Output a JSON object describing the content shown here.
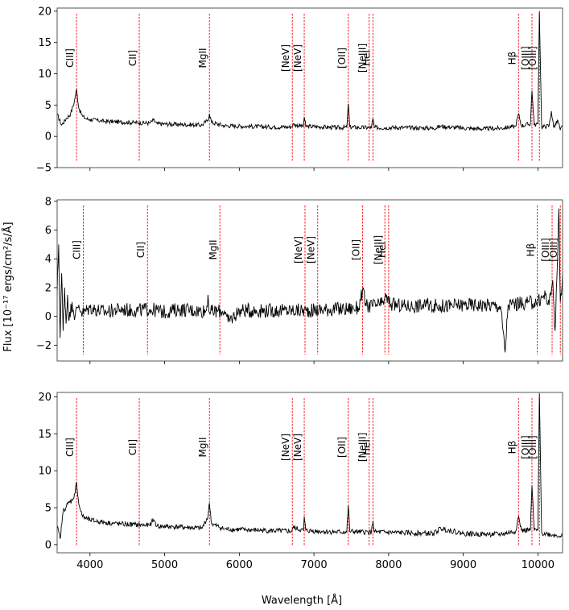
{
  "figure": {
    "xlabel": "Wavelength [Å]",
    "ylabel": "Flux [10⁻¹⁷ ergs/cm²/s/Å]"
  },
  "chart_data": [
    {
      "type": "line",
      "xlim": [
        3560,
        10330
      ],
      "ylim": [
        -5,
        20.5
      ],
      "yticks": [
        -5,
        0,
        5,
        10,
        15,
        20
      ],
      "xticks": [
        4000,
        5000,
        6000,
        7000,
        8000,
        9000,
        10000
      ],
      "show_xtick_labels": false,
      "grid": false,
      "line_color": "#ff0000",
      "spectrum_color": "#000000",
      "emission_lines": [
        {
          "label": "CIII]",
          "x": 3820
        },
        {
          "label": "CII]",
          "x": 4660
        },
        {
          "label": "MgII",
          "x": 5600
        },
        {
          "label": "[NeV]",
          "x": 6710
        },
        {
          "label": "[NeV]",
          "x": 6870
        },
        {
          "label": "[OII]",
          "x": 7460
        },
        {
          "label": "[NeIII]",
          "x": 7740
        },
        {
          "label": "HeI",
          "x": 7790
        },
        {
          "label": "Hβ",
          "x": 9740
        },
        {
          "label": "[OIII]",
          "x": 9920
        },
        {
          "label": "[OIII]",
          "x": 10020
        }
      ],
      "spectrum": [
        [
          3560,
          3.5
        ],
        [
          3620,
          1.8
        ],
        [
          3680,
          2.8
        ],
        [
          3740,
          3.6
        ],
        [
          3790,
          5.5
        ],
        [
          3820,
          7.5
        ],
        [
          3850,
          4.5
        ],
        [
          3900,
          3.2
        ],
        [
          3950,
          2.8
        ],
        [
          4000,
          2.7
        ],
        [
          4200,
          2.4
        ],
        [
          4400,
          2.3
        ],
        [
          4600,
          2.2
        ],
        [
          4800,
          2.1
        ],
        [
          4850,
          2.6
        ],
        [
          4900,
          2.0
        ],
        [
          5200,
          1.9
        ],
        [
          5500,
          1.8
        ],
        [
          5580,
          2.6
        ],
        [
          5600,
          3.6
        ],
        [
          5630,
          2.2
        ],
        [
          5800,
          1.7
        ],
        [
          6100,
          1.6
        ],
        [
          6400,
          1.5
        ],
        [
          6700,
          1.5
        ],
        [
          6720,
          1.9
        ],
        [
          6860,
          1.6
        ],
        [
          6870,
          3.1
        ],
        [
          6890,
          1.6
        ],
        [
          7100,
          1.5
        ],
        [
          7300,
          1.4
        ],
        [
          7440,
          1.4
        ],
        [
          7460,
          5.2
        ],
        [
          7480,
          1.5
        ],
        [
          7600,
          1.4
        ],
        [
          7770,
          1.4
        ],
        [
          7790,
          2.8
        ],
        [
          7810,
          1.4
        ],
        [
          8200,
          1.4
        ],
        [
          8600,
          1.3
        ],
        [
          8700,
          1.6
        ],
        [
          9000,
          1.3
        ],
        [
          9300,
          1.2
        ],
        [
          9500,
          1.3
        ],
        [
          9700,
          1.6
        ],
        [
          9740,
          3.6
        ],
        [
          9780,
          1.7
        ],
        [
          9900,
          2.0
        ],
        [
          9920,
          7.3
        ],
        [
          9950,
          1.8
        ],
        [
          10000,
          2.0
        ],
        [
          10020,
          20.0
        ],
        [
          10050,
          1.5
        ],
        [
          10150,
          1.7
        ],
        [
          10180,
          4.0
        ],
        [
          10210,
          1.5
        ],
        [
          10270,
          2.5
        ],
        [
          10300,
          1.0
        ],
        [
          10330,
          1.6
        ]
      ]
    },
    {
      "type": "line",
      "xlim": [
        3560,
        10330
      ],
      "ylim": [
        -3.1,
        8.1
      ],
      "yticks": [
        -2,
        0,
        2,
        4,
        6,
        8
      ],
      "xticks": [
        4000,
        5000,
        6000,
        7000,
        8000,
        9000,
        10000
      ],
      "show_xtick_labels": false,
      "grid": false,
      "line_color": "#ff0000",
      "spectrum_color": "#000000",
      "emission_lines": [
        {
          "label": "CIII]",
          "x": 3910
        },
        {
          "label": "CII]",
          "x": 4770
        },
        {
          "label": "MgII",
          "x": 5740
        },
        {
          "label": "[NeV]",
          "x": 6880
        },
        {
          "label": "[NeV]",
          "x": 7050
        },
        {
          "label": "[OII]",
          "x": 7650
        },
        {
          "label": "[NeIII]",
          "x": 7950
        },
        {
          "label": "HeI",
          "x": 8000
        },
        {
          "label": "Hβ",
          "x": 9990
        },
        {
          "label": "[OIII]",
          "x": 10190
        },
        {
          "label": "[OIII]",
          "x": 10300
        }
      ],
      "spectrum": [
        [
          3560,
          1.5
        ],
        [
          3580,
          5.0
        ],
        [
          3600,
          -1.5
        ],
        [
          3620,
          3.0
        ],
        [
          3640,
          -1.0
        ],
        [
          3660,
          2.0
        ],
        [
          3680,
          -0.5
        ],
        [
          3700,
          1.5
        ],
        [
          3720,
          -0.3
        ],
        [
          3760,
          1.0
        ],
        [
          3800,
          0.0
        ],
        [
          3850,
          0.8
        ],
        [
          3900,
          0.2
        ],
        [
          4000,
          0.6
        ],
        [
          4200,
          0.3
        ],
        [
          4400,
          0.5
        ],
        [
          4600,
          0.4
        ],
        [
          4800,
          0.5
        ],
        [
          5000,
          0.3
        ],
        [
          5200,
          0.5
        ],
        [
          5400,
          0.4
        ],
        [
          5560,
          0.4
        ],
        [
          5580,
          1.5
        ],
        [
          5600,
          0.3
        ],
        [
          5800,
          0.4
        ],
        [
          5850,
          -0.4
        ],
        [
          6000,
          0.4
        ],
        [
          6300,
          0.4
        ],
        [
          6600,
          0.4
        ],
        [
          6900,
          0.4
        ],
        [
          7200,
          0.5
        ],
        [
          7400,
          0.5
        ],
        [
          7600,
          0.6
        ],
        [
          7650,
          1.8
        ],
        [
          7700,
          0.7
        ],
        [
          7900,
          0.8
        ],
        [
          7950,
          1.3
        ],
        [
          8050,
          0.8
        ],
        [
          8300,
          0.7
        ],
        [
          8500,
          0.8
        ],
        [
          8700,
          0.7
        ],
        [
          9000,
          0.8
        ],
        [
          9300,
          0.8
        ],
        [
          9500,
          0.7
        ],
        [
          9560,
          -2.5
        ],
        [
          9600,
          0.8
        ],
        [
          9800,
          0.9
        ],
        [
          10000,
          1.0
        ],
        [
          10100,
          1.5
        ],
        [
          10150,
          0.8
        ],
        [
          10200,
          2.5
        ],
        [
          10230,
          -1.0
        ],
        [
          10260,
          3.5
        ],
        [
          10280,
          7.5
        ],
        [
          10300,
          1.0
        ],
        [
          10330,
          3.0
        ]
      ]
    },
    {
      "type": "line",
      "xlim": [
        3560,
        10330
      ],
      "ylim": [
        -1.1,
        20.6
      ],
      "yticks": [
        0,
        5,
        10,
        15,
        20
      ],
      "xticks": [
        4000,
        5000,
        6000,
        7000,
        8000,
        9000,
        10000
      ],
      "show_xtick_labels": true,
      "grid": false,
      "line_color": "#ff0000",
      "spectrum_color": "#000000",
      "emission_lines": [
        {
          "label": "CIII]",
          "x": 3820
        },
        {
          "label": "CII]",
          "x": 4660
        },
        {
          "label": "MgII",
          "x": 5600
        },
        {
          "label": "[NeV]",
          "x": 6710
        },
        {
          "label": "[NeV]",
          "x": 6870
        },
        {
          "label": "[OII]",
          "x": 7460
        },
        {
          "label": "[NeIII]",
          "x": 7740
        },
        {
          "label": "HeI",
          "x": 7790
        },
        {
          "label": "Hβ",
          "x": 9740
        },
        {
          "label": "[OIII]",
          "x": 9920
        },
        {
          "label": "[OIII]",
          "x": 10020
        }
      ],
      "spectrum": [
        [
          3560,
          2.5
        ],
        [
          3600,
          0.8
        ],
        [
          3640,
          4.5
        ],
        [
          3700,
          5.5
        ],
        [
          3760,
          6.0
        ],
        [
          3800,
          7.0
        ],
        [
          3820,
          8.5
        ],
        [
          3850,
          5.5
        ],
        [
          3900,
          3.8
        ],
        [
          4000,
          3.3
        ],
        [
          4200,
          3.0
        ],
        [
          4400,
          2.8
        ],
        [
          4600,
          2.7
        ],
        [
          4800,
          2.6
        ],
        [
          4850,
          3.4
        ],
        [
          4900,
          2.5
        ],
        [
          5200,
          2.4
        ],
        [
          5500,
          2.2
        ],
        [
          5580,
          3.8
        ],
        [
          5600,
          5.6
        ],
        [
          5630,
          2.8
        ],
        [
          5800,
          2.1
        ],
        [
          6100,
          2.0
        ],
        [
          6400,
          1.9
        ],
        [
          6700,
          1.8
        ],
        [
          6720,
          2.3
        ],
        [
          6860,
          1.9
        ],
        [
          6870,
          3.8
        ],
        [
          6890,
          1.9
        ],
        [
          7100,
          1.8
        ],
        [
          7300,
          1.7
        ],
        [
          7440,
          1.7
        ],
        [
          7460,
          5.3
        ],
        [
          7480,
          1.8
        ],
        [
          7600,
          1.7
        ],
        [
          7770,
          1.7
        ],
        [
          7790,
          3.2
        ],
        [
          7810,
          1.7
        ],
        [
          8200,
          1.6
        ],
        [
          8600,
          1.5
        ],
        [
          8700,
          2.2
        ],
        [
          9000,
          1.5
        ],
        [
          9300,
          1.4
        ],
        [
          9500,
          1.4
        ],
        [
          9700,
          1.8
        ],
        [
          9740,
          3.8
        ],
        [
          9780,
          1.9
        ],
        [
          9900,
          2.0
        ],
        [
          9920,
          8.0
        ],
        [
          9950,
          1.9
        ],
        [
          10000,
          2.0
        ],
        [
          10020,
          20.5
        ],
        [
          10050,
          1.6
        ],
        [
          10200,
          1.3
        ],
        [
          10330,
          1.2
        ]
      ]
    }
  ]
}
